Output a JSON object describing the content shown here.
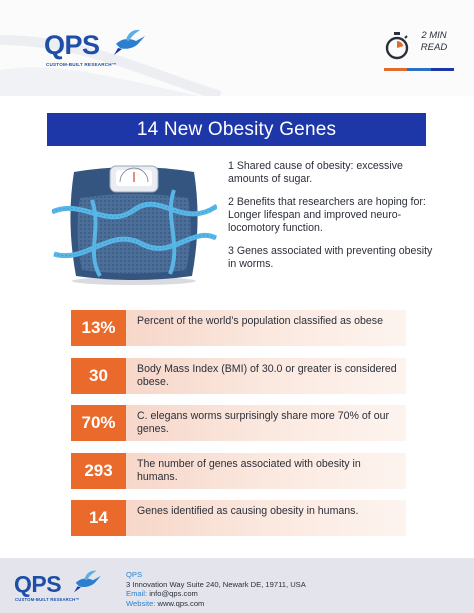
{
  "brand": {
    "name": "QPS",
    "tagline": "CUSTOM-BUILT RESEARCH™",
    "primary_color": "#1d37a8",
    "accent_color": "#ea6a2b",
    "logo_color": "#1e4ea8"
  },
  "read_time": {
    "line1": "2 MIN",
    "line2": "READ",
    "icon": "stopwatch-icon",
    "bar_colors": [
      "#e36a2d",
      "#2c6fc7",
      "#1d37a8"
    ]
  },
  "title": "14 New Obesity Genes",
  "image": {
    "icon": "bathroom-scale-with-measuring-tape"
  },
  "facts": [
    "1 Shared cause of obesity: excessive amounts of sugar.",
    "2 Benefits that researchers are hoping for: Longer lifespan and improved neuro-locomotory function.",
    "3 Genes associated with preventing obesity in worms."
  ],
  "stats": [
    {
      "value": "13%",
      "text": "Percent of the world’s population classified as obese"
    },
    {
      "value": "30",
      "text": "Body Mass Index (BMI) of 30.0 or greater is considered obese."
    },
    {
      "value": "70%",
      "text": "C. elegans worms surprisingly share more 70% of our genes."
    },
    {
      "value": "293",
      "text": "The number of genes associated with obesity in humans."
    },
    {
      "value": "14",
      "text": "Genes identified as causing obesity in humans."
    }
  ],
  "footer": {
    "company": "QPS",
    "address": "3 Innovation Way Suite 240, Newark DE, 19711, USA",
    "email_label": "Email:",
    "email": "info@qps.com",
    "website_label": "Website:",
    "website": "www.qps.com"
  }
}
